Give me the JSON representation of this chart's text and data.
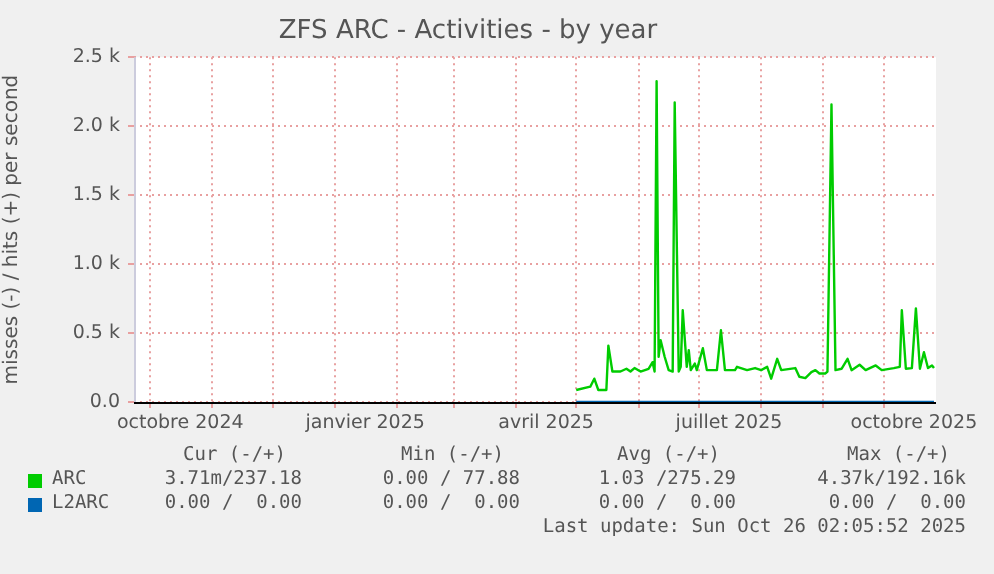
{
  "chart_data": {
    "type": "line",
    "title": "ZFS ARC - Activities - by year",
    "ylabel": "misses (-) / hits (+) per second",
    "xlim": [
      "2024-09-23",
      "2025-10-27"
    ],
    "xticks": [
      {
        "value": "2024-10-01",
        "label": null
      },
      {
        "value": "2024-10-16",
        "label": "octobre 2024"
      },
      {
        "value": "2024-11-01",
        "label": null
      },
      {
        "value": "2024-12-01",
        "label": null
      },
      {
        "value": "2025-01-01",
        "label": null
      },
      {
        "value": "2025-01-16",
        "label": "janvier 2025"
      },
      {
        "value": "2025-02-01",
        "label": null
      },
      {
        "value": "2025-03-01",
        "label": null
      },
      {
        "value": "2025-04-01",
        "label": null
      },
      {
        "value": "2025-04-16",
        "label": "avril 2025"
      },
      {
        "value": "2025-05-01",
        "label": null
      },
      {
        "value": "2025-06-01",
        "label": null
      },
      {
        "value": "2025-07-01",
        "label": null
      },
      {
        "value": "2025-07-16",
        "label": "juillet 2025"
      },
      {
        "value": "2025-08-01",
        "label": null
      },
      {
        "value": "2025-09-01",
        "label": null
      },
      {
        "value": "2025-10-01",
        "label": null
      },
      {
        "value": "2025-10-16",
        "label": "octobre 2025"
      }
    ],
    "ylim": [
      0,
      2500
    ],
    "yticks": [
      {
        "value": 0,
        "label": "0.0"
      },
      {
        "value": 500,
        "label": "0.5 k"
      },
      {
        "value": 1000,
        "label": "1.0 k"
      },
      {
        "value": 1500,
        "label": "1.5 k"
      },
      {
        "value": 2000,
        "label": "2.0 k"
      },
      {
        "value": 2500,
        "label": "2.5 k"
      }
    ],
    "grid": true,
    "legend": "bottom",
    "series": [
      {
        "name": "ARC",
        "color": "#00cc00",
        "x": [
          "2025-05-01",
          "2025-05-08",
          "2025-05-10",
          "2025-05-12",
          "2025-05-16",
          "2025-05-17",
          "2025-05-19",
          "2025-05-23",
          "2025-05-26",
          "2025-05-28",
          "2025-05-30",
          "2025-06-02",
          "2025-06-06",
          "2025-06-08",
          "2025-06-09",
          "2025-06-10",
          "2025-06-11",
          "2025-06-12",
          "2025-06-14",
          "2025-06-16",
          "2025-06-18",
          "2025-06-19",
          "2025-06-21",
          "2025-06-22",
          "2025-06-23",
          "2025-06-25",
          "2025-06-26",
          "2025-06-27",
          "2025-06-29",
          "2025-06-30",
          "2025-07-03",
          "2025-07-05",
          "2025-07-10",
          "2025-07-12",
          "2025-07-14",
          "2025-07-19",
          "2025-07-20",
          "2025-07-25",
          "2025-07-29",
          "2025-08-01",
          "2025-08-04",
          "2025-08-06",
          "2025-08-09",
          "2025-08-11",
          "2025-08-18",
          "2025-08-20",
          "2025-08-23",
          "2025-08-26",
          "2025-08-28",
          "2025-08-30",
          "2025-09-02",
          "2025-09-03",
          "2025-09-05",
          "2025-09-07",
          "2025-09-10",
          "2025-09-13",
          "2025-09-15",
          "2025-09-19",
          "2025-09-22",
          "2025-09-27",
          "2025-09-30",
          "2025-10-06",
          "2025-10-09",
          "2025-10-10",
          "2025-10-12",
          "2025-10-15",
          "2025-10-17",
          "2025-10-19",
          "2025-10-21",
          "2025-10-23",
          "2025-10-25",
          "2025-10-26"
        ],
        "values": [
          87,
          111,
          169,
          87,
          87,
          409,
          221,
          221,
          241,
          221,
          246,
          221,
          241,
          289,
          221,
          2326,
          328,
          448,
          328,
          231,
          221,
          2172,
          221,
          255,
          665,
          255,
          376,
          231,
          279,
          231,
          390,
          231,
          231,
          520,
          231,
          231,
          255,
          231,
          246,
          231,
          255,
          169,
          313,
          231,
          246,
          183,
          173,
          217,
          231,
          207,
          207,
          221,
          2157,
          231,
          241,
          313,
          231,
          270,
          231,
          265,
          231,
          246,
          255,
          665,
          241,
          246,
          679,
          241,
          361,
          246,
          265,
          246
        ]
      },
      {
        "name": "L2ARC",
        "color": "#0066b3",
        "x": [
          "2025-05-01",
          "2025-10-26"
        ],
        "values": [
          0,
          0
        ]
      }
    ],
    "annotations": [
      "Cur (-/+)",
      "Min (-/+)",
      "Avg (-/+)",
      "Max (-/+)",
      "3.71m/237.18",
      "0.00 / 77.88",
      "1.03 /275.29",
      "4.37k/192.16k",
      "0.00 /  0.00",
      "0.00 /  0.00",
      "0.00 /  0.00",
      "0.00 /  0.00",
      "Last update: Sun Oct 26 02:05:52 2025"
    ]
  }
}
